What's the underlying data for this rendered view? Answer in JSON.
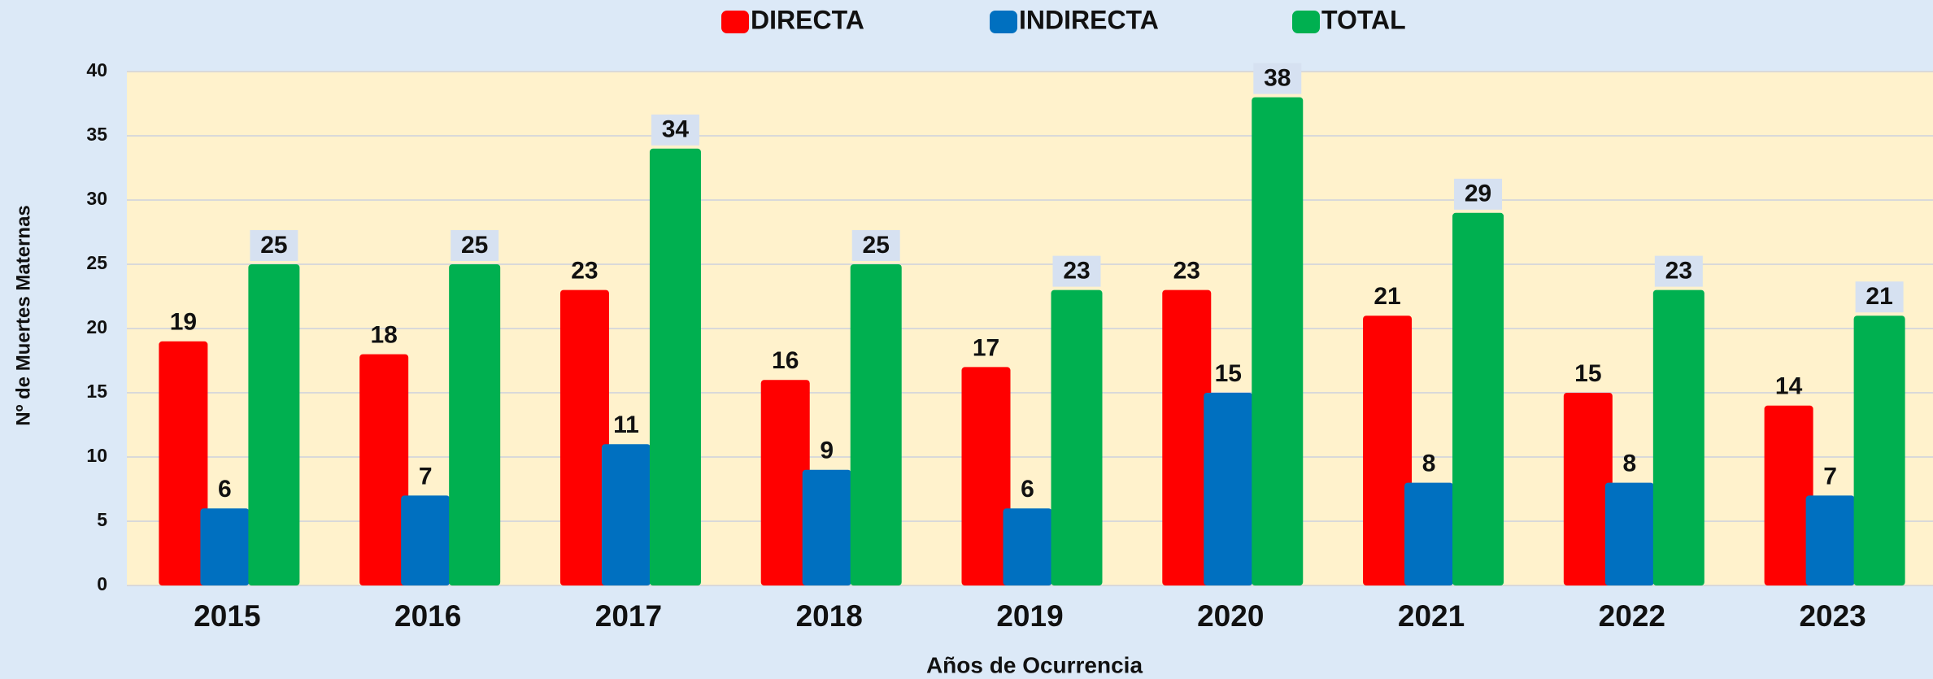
{
  "chart_data": {
    "type": "bar",
    "categories": [
      "2015",
      "2016",
      "2017",
      "2018",
      "2019",
      "2020",
      "2021",
      "2022",
      "2023"
    ],
    "series": [
      {
        "name": "DIRECTA",
        "color": "#ff0000",
        "values": [
          19,
          18,
          23,
          16,
          17,
          23,
          21,
          15,
          14
        ]
      },
      {
        "name": "INDIRECTA",
        "color": "#0070c0",
        "values": [
          6,
          7,
          11,
          9,
          6,
          15,
          8,
          8,
          7
        ]
      },
      {
        "name": "TOTAL",
        "color": "#00b050",
        "values": [
          25,
          25,
          34,
          25,
          23,
          38,
          29,
          23,
          21
        ]
      }
    ],
    "xlabel": "Años de Ocurrencia",
    "ylabel": "Nº de Muertes Maternas",
    "ylim": [
      0,
      40
    ],
    "yticks": [
      0,
      5,
      10,
      15,
      20,
      25,
      30,
      35,
      40
    ],
    "grid": true
  }
}
